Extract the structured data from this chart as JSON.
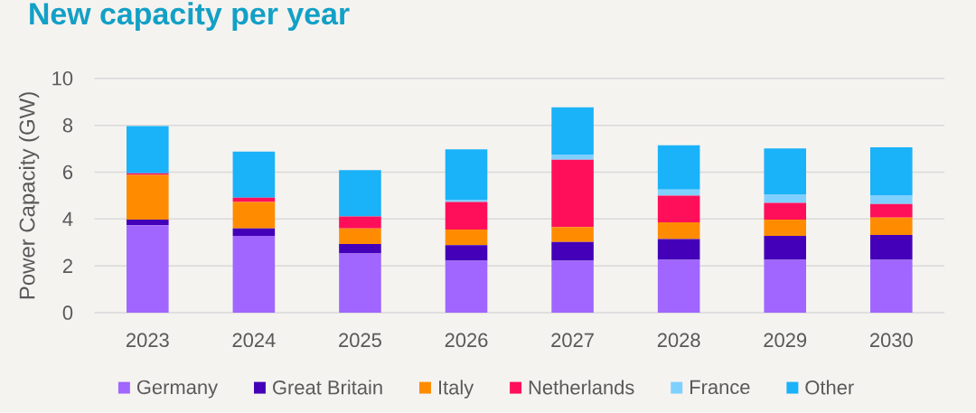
{
  "chart_data": {
    "type": "bar",
    "title": "New capacity per year",
    "ylabel": "Power Capacity (GW)",
    "categories": [
      "2023",
      "2024",
      "2025",
      "2026",
      "2027",
      "2028",
      "2029",
      "2030"
    ],
    "stacked": true,
    "series": [
      {
        "name": "Germany",
        "color": "#a066ff",
        "values": [
          3.73,
          3.28,
          2.53,
          2.22,
          2.22,
          2.26,
          2.26,
          2.26
        ]
      },
      {
        "name": "Great Britain",
        "color": "#4400b8",
        "values": [
          0.25,
          0.32,
          0.4,
          0.67,
          0.8,
          0.89,
          1.02,
          1.06
        ]
      },
      {
        "name": "Italy",
        "color": "#ff8c00",
        "values": [
          1.9,
          1.13,
          0.67,
          0.66,
          0.64,
          0.71,
          0.7,
          0.74
        ]
      },
      {
        "name": "Netherlands",
        "color": "#ff0f5a",
        "values": [
          0.07,
          0.18,
          0.51,
          1.18,
          2.87,
          1.14,
          0.71,
          0.58
        ]
      },
      {
        "name": "France",
        "color": "#7fd0ff",
        "values": [
          null,
          null,
          null,
          0.09,
          0.22,
          0.26,
          0.35,
          0.36
        ]
      },
      {
        "name": "Other",
        "color": "#1ab2f8",
        "values": [
          2.02,
          1.97,
          1.98,
          2.15,
          2.02,
          1.89,
          1.97,
          2.06
        ]
      }
    ],
    "ylim": [
      0,
      10
    ],
    "yticks": [
      0,
      2,
      4,
      6,
      8,
      10
    ],
    "grid": "y",
    "legend": "bottom"
  }
}
